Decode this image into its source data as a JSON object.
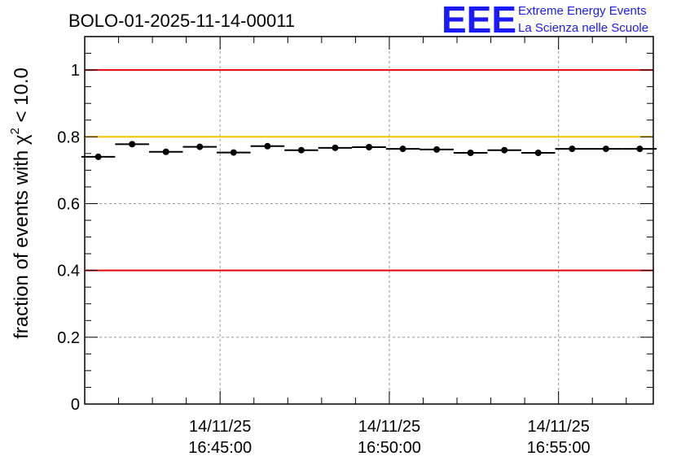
{
  "logo": {
    "big_text": "EEE",
    "line1": "Extreme Energy Events",
    "line2": "La Scienza nelle Scuole",
    "color": "#1a1aff"
  },
  "chart_data": {
    "type": "scatter",
    "title": "BOLO-01-2025-11-14-00011",
    "ylabel": "fraction of events with χ² < 10.0",
    "ylabel_parts": {
      "prefix": "fraction of events with ",
      "chi": "χ",
      "sup": "2",
      "suffix": " < 10.0"
    },
    "xlabel": "",
    "ylim": [
      0,
      1.1
    ],
    "xlim_minutes": [
      -4.0,
      12.8
    ],
    "yticks": [
      0,
      0.2,
      0.4,
      0.6,
      0.8,
      1
    ],
    "ytick_labels": [
      "0",
      "0.2",
      "0.4",
      "0.6",
      "0.8",
      "1"
    ],
    "xticks_minutes": [
      0,
      5,
      10
    ],
    "xtick_labels": [
      [
        "14/11/25",
        "16:45:00"
      ],
      [
        "14/11/25",
        "16:50:00"
      ],
      [
        "14/11/25",
        "16:55:00"
      ]
    ],
    "grid": true,
    "bin_width_minutes": 1.0,
    "x_minutes": [
      -3.6,
      -2.6,
      -1.6,
      -0.6,
      0.4,
      1.4,
      2.4,
      3.4,
      4.4,
      5.4,
      6.4,
      7.4,
      8.4,
      9.4,
      10.4,
      11.4,
      12.4
    ],
    "values": [
      0.74,
      0.778,
      0.755,
      0.77,
      0.753,
      0.772,
      0.76,
      0.767,
      0.769,
      0.764,
      0.762,
      0.752,
      0.76,
      0.752,
      0.764,
      0.764,
      0.764
    ],
    "reference_lines": [
      {
        "y": 1.0,
        "color": "#e8000b"
      },
      {
        "y": 0.8,
        "color": "#ffc000"
      },
      {
        "y": 0.4,
        "color": "#e8000b"
      }
    ],
    "marker_color": "#000000"
  }
}
